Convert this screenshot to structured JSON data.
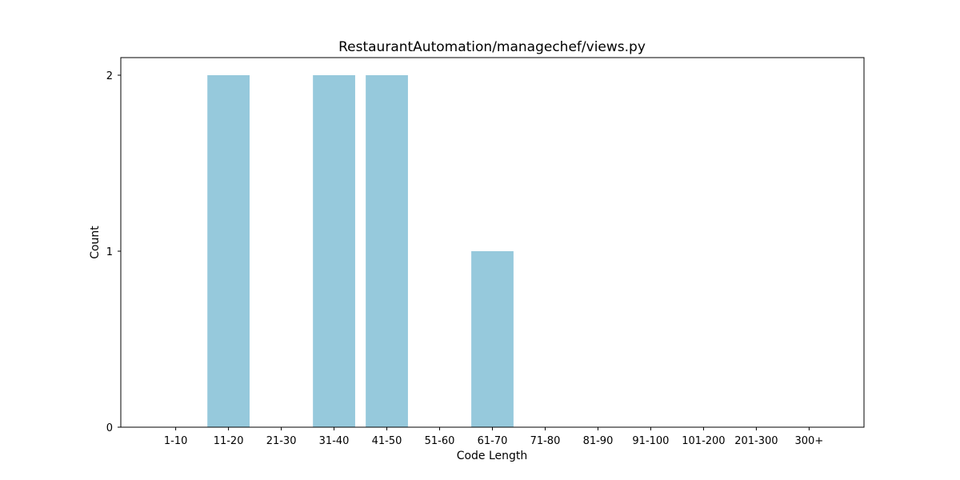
{
  "chart_data": {
    "type": "bar",
    "title": "RestaurantAutomation/managechef/views.py",
    "xlabel": "Code Length",
    "ylabel": "Count",
    "categories": [
      "1-10",
      "11-20",
      "21-30",
      "31-40",
      "41-50",
      "51-60",
      "61-70",
      "71-80",
      "81-90",
      "91-100",
      "101-200",
      "201-300",
      "300+"
    ],
    "values": [
      0,
      2,
      0,
      2,
      2,
      0,
      1,
      0,
      0,
      0,
      0,
      0,
      0
    ],
    "ylim": [
      0,
      2.1
    ],
    "yticks": [
      "0",
      "1",
      "2"
    ],
    "grid": false,
    "legend": "none",
    "bar_color": "#96c9dc"
  }
}
